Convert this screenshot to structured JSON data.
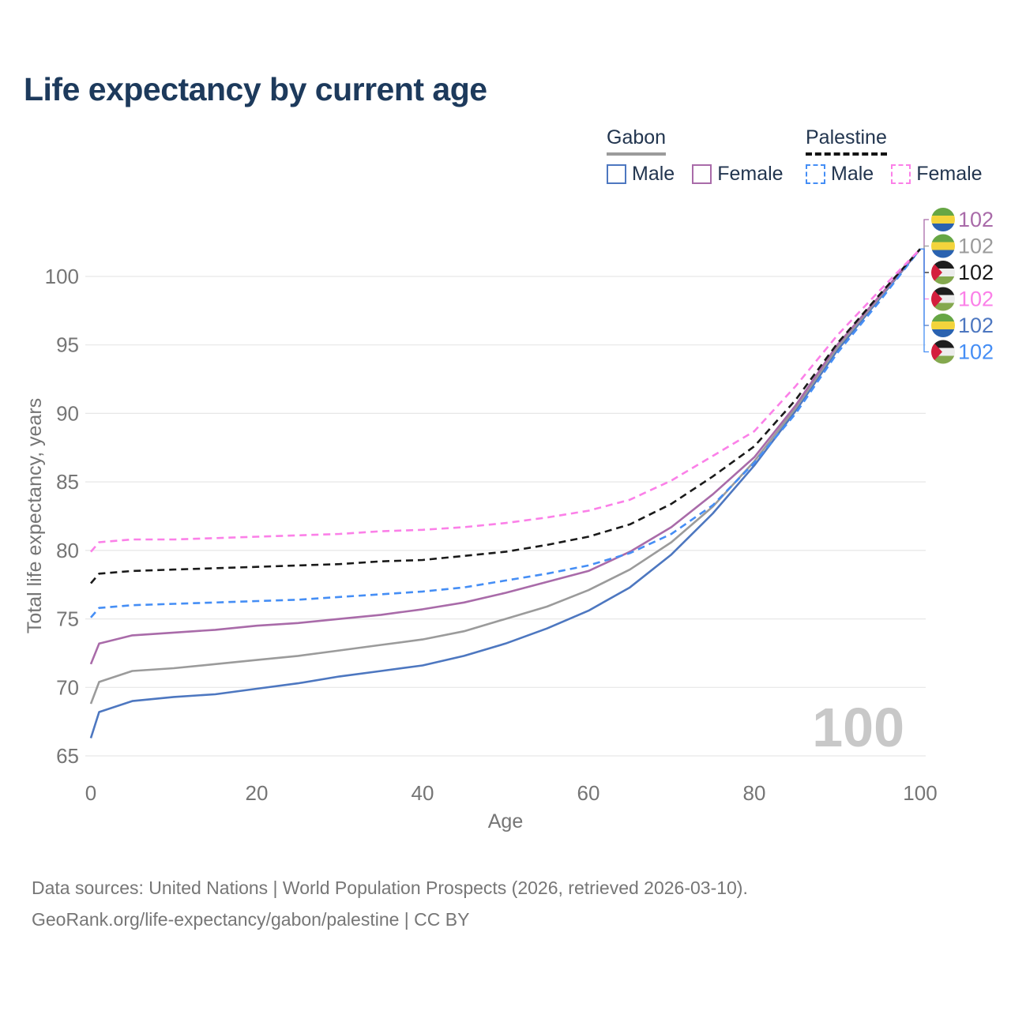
{
  "title": "Life expectancy by current age",
  "legend": {
    "groups": [
      {
        "label": "Gabon",
        "line_style": "solid",
        "underline_color": "#9b9b9b",
        "items": [
          {
            "label": "Male",
            "color": "#4d77c0",
            "dash": "solid"
          },
          {
            "label": "Female",
            "color": "#a96ba9",
            "dash": "solid"
          }
        ]
      },
      {
        "label": "Palestine",
        "line_style": "dashed",
        "underline_color": "#141414",
        "items": [
          {
            "label": "Male",
            "color": "#458ef5",
            "dash": "dashed"
          },
          {
            "label": "Female",
            "color": "#fb80e8",
            "dash": "dashed"
          }
        ]
      }
    ]
  },
  "chart_data": {
    "type": "line",
    "title": "Life expectancy by current age",
    "xlabel": "Age",
    "ylabel": "Total life expectancy, years",
    "watermark": "100",
    "xlim": [
      0,
      100
    ],
    "ylim": [
      65,
      103
    ],
    "xticks": [
      0,
      20,
      40,
      60,
      80,
      100
    ],
    "yticks": [
      65,
      70,
      75,
      80,
      85,
      90,
      95,
      100
    ],
    "grid": "horizontal",
    "legend_position": "top-right",
    "x": [
      0,
      1,
      5,
      10,
      15,
      20,
      25,
      30,
      35,
      40,
      45,
      50,
      55,
      60,
      65,
      70,
      75,
      80,
      85,
      90,
      95,
      100
    ],
    "series": [
      {
        "key": "gabon_male",
        "name": "Gabon Male",
        "country": "gabon",
        "sex": "male",
        "color": "#4d77c0",
        "dash": "solid",
        "end_label": "102",
        "values": [
          66.3,
          68.2,
          69.0,
          69.3,
          69.5,
          69.9,
          70.3,
          70.8,
          71.2,
          71.6,
          72.3,
          73.2,
          74.3,
          75.6,
          77.3,
          79.7,
          82.7,
          86.2,
          90.2,
          94.6,
          98.3,
          102
        ]
      },
      {
        "key": "gabon_total",
        "name": "Gabon Total",
        "country": "gabon",
        "sex": "both",
        "color": "#9b9b9b",
        "dash": "solid",
        "end_label": "102",
        "values": [
          68.8,
          70.4,
          71.2,
          71.4,
          71.7,
          72.0,
          72.3,
          72.7,
          73.1,
          73.5,
          74.1,
          75.0,
          75.9,
          77.1,
          78.6,
          80.6,
          83.2,
          86.5,
          90.4,
          94.8,
          98.4,
          102
        ]
      },
      {
        "key": "gabon_female",
        "name": "Gabon Female",
        "country": "gabon",
        "sex": "female",
        "color": "#a96ba9",
        "dash": "solid",
        "end_label": "102",
        "values": [
          71.7,
          73.2,
          73.8,
          74.0,
          74.2,
          74.5,
          74.7,
          75.0,
          75.3,
          75.7,
          76.2,
          76.9,
          77.7,
          78.5,
          79.9,
          81.7,
          84.1,
          86.8,
          90.6,
          95.0,
          98.5,
          102
        ]
      },
      {
        "key": "palestine_male",
        "name": "Palestine Male",
        "country": "palestine",
        "sex": "male",
        "color": "#458ef5",
        "dash": "dashed",
        "end_label": "102",
        "values": [
          75.1,
          75.8,
          76.0,
          76.1,
          76.2,
          76.3,
          76.4,
          76.6,
          76.8,
          77.0,
          77.3,
          77.8,
          78.3,
          78.9,
          79.8,
          81.2,
          83.3,
          86.4,
          90.0,
          94.4,
          98.1,
          102
        ]
      },
      {
        "key": "palestine_total",
        "name": "Palestine Total",
        "country": "palestine",
        "sex": "both",
        "color": "#1a1a1a",
        "dash": "dashed",
        "end_label": "102",
        "values": [
          77.6,
          78.3,
          78.5,
          78.6,
          78.7,
          78.8,
          78.9,
          79.0,
          79.2,
          79.3,
          79.6,
          79.9,
          80.4,
          81.0,
          81.9,
          83.4,
          85.4,
          87.6,
          91.0,
          95.1,
          98.6,
          102
        ]
      },
      {
        "key": "palestine_female",
        "name": "Palestine Female",
        "country": "palestine",
        "sex": "female",
        "color": "#fb80e8",
        "dash": "dashed",
        "end_label": "102",
        "values": [
          79.9,
          80.6,
          80.8,
          80.8,
          80.9,
          81.0,
          81.1,
          81.2,
          81.4,
          81.5,
          81.7,
          82.0,
          82.4,
          82.9,
          83.7,
          85.1,
          86.9,
          88.7,
          92.0,
          95.7,
          98.9,
          102
        ]
      }
    ],
    "end_label_order": [
      "gabon_female",
      "gabon_total",
      "palestine_total",
      "palestine_female",
      "gabon_male",
      "palestine_male"
    ]
  },
  "icons": {
    "gabon_flag": "gabon-flag-icon",
    "palestine_flag": "palestine-flag-icon"
  },
  "colors": {
    "title": "#1d3a5c",
    "grid": "#e7e7e7",
    "axis_text": "#757575",
    "watermark": "#c8c8c8",
    "footer": "#767676"
  },
  "footer": {
    "line1": "Data sources: United Nations | World Population Prospects (2026, retrieved 2026-03-10).",
    "line2": "GeoRank.org/life-expectancy/gabon/palestine | CC BY"
  }
}
